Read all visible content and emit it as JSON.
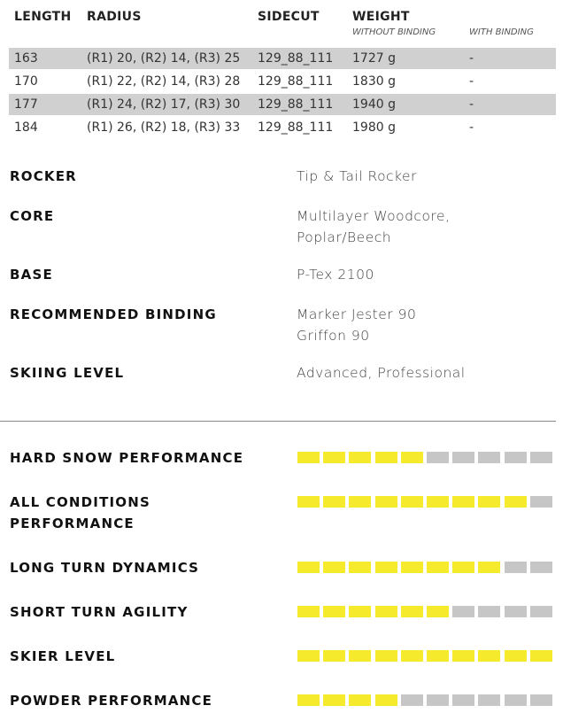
{
  "table": {
    "headers": [
      "LENGTH",
      "RADIUS",
      "SIDECUT",
      "WEIGHT"
    ],
    "subheaders": [
      "WITHOUT BINDING",
      "WITH BINDING"
    ],
    "rows": [
      [
        "163",
        "(R1) 20, (R2) 14, (R3) 25",
        "129_88_111",
        "1727 g",
        "-"
      ],
      [
        "170",
        "(R1) 22, (R2) 14, (R3) 28",
        "129_88_111",
        "1830 g",
        "-"
      ],
      [
        "177",
        "(R1) 24, (R2) 17, (R3) 30",
        "129_88_111",
        "1940 g",
        "-"
      ],
      [
        "184",
        "(R1) 26, (R2) 18, (R3) 33",
        "129_88_111",
        "1980 g",
        "-"
      ]
    ]
  },
  "specs": [
    {
      "label": "ROCKER",
      "lines": [
        "Tip & Tail Rocker"
      ]
    },
    {
      "label": "CORE",
      "lines": [
        "Multilayer Woodcore,",
        "Poplar/Beech"
      ]
    },
    {
      "label": "BASE",
      "lines": [
        "P-Tex 2100"
      ]
    },
    {
      "label": "RECOMMENDED BINDING",
      "lines": [
        "Marker Jester 90",
        "Griffon 90"
      ]
    },
    {
      "label": "SKIING LEVEL",
      "lines": [
        "Advanced, Professional"
      ]
    }
  ],
  "ratings": {
    "scale": 10,
    "items": [
      {
        "label_lines": [
          "HARD SNOW PERFORMANCE"
        ],
        "value": 5
      },
      {
        "label_lines": [
          "ALL CONDITIONS",
          "PERFORMANCE"
        ],
        "value": 9
      },
      {
        "label_lines": [
          "LONG TURN DYNAMICS"
        ],
        "value": 8
      },
      {
        "label_lines": [
          "SHORT TURN AGILITY"
        ],
        "value": 6
      },
      {
        "label_lines": [
          "SKIER LEVEL"
        ],
        "value": 10
      },
      {
        "label_lines": [
          "POWDER PERFORMANCE"
        ],
        "value": 4
      }
    ]
  }
}
